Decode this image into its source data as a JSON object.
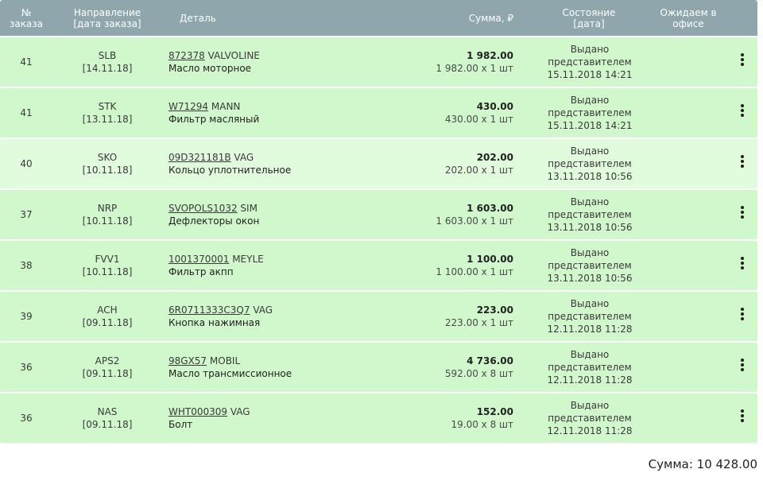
{
  "header": {
    "num": "№\nзаказа",
    "direction": "Направление\n[дата заказа]",
    "detail": "Деталь",
    "sum": "Сумма, ₽",
    "state": "Состояние\n[дата]",
    "office": "Ожидаем в\nофисе"
  },
  "rows": [
    {
      "num": "41",
      "dir": "SLB",
      "date": "[14.11.18]",
      "code": "872378",
      "brand": "VALVOLINE",
      "name": "Масло моторное",
      "total": "1 982.00",
      "detail": "1 982.00 х 1 шт",
      "status": "Выдано",
      "status2": "представителем",
      "status_date": "15.11.2018 14:21"
    },
    {
      "num": "41",
      "dir": "STK",
      "date": "[13.11.18]",
      "code": "W71294",
      "brand": "MANN",
      "name": "Фильтр масляный",
      "total": "430.00",
      "detail": "430.00 х 1 шт",
      "status": "Выдано",
      "status2": "представителем",
      "status_date": "15.11.2018 14:21"
    },
    {
      "num": "40",
      "dir": "SKO",
      "date": "[10.11.18]",
      "code": "09D321181B",
      "brand": "VAG",
      "name": "Кольцо уплотнительное",
      "total": "202.00",
      "detail": "202.00 х 1 шт",
      "status": "Выдано",
      "status2": "представителем",
      "status_date": "13.11.2018 10:56"
    },
    {
      "num": "37",
      "dir": "NRP",
      "date": "[10.11.18]",
      "code": "SVOPOLS1032",
      "brand": "SIM",
      "name": "Дефлекторы окон",
      "total": "1 603.00",
      "detail": "1 603.00 х 1 шт",
      "status": "Выдано",
      "status2": "представителем",
      "status_date": "13.11.2018 10:56"
    },
    {
      "num": "38",
      "dir": "FVV1",
      "date": "[10.11.18]",
      "code": "1001370001",
      "brand": "MEYLE",
      "name": "Фильтр акпп",
      "total": "1 100.00",
      "detail": "1 100.00 х 1 шт",
      "status": "Выдано",
      "status2": "представителем",
      "status_date": "13.11.2018 10:56"
    },
    {
      "num": "39",
      "dir": "ACH",
      "date": "[09.11.18]",
      "code": "6R0711333C3Q7",
      "brand": "VAG",
      "name": "Кнопка нажимная",
      "total": "223.00",
      "detail": "223.00 х 1 шт",
      "status": "Выдано",
      "status2": "представителем",
      "status_date": "12.11.2018 11:28"
    },
    {
      "num": "36",
      "dir": "APS2",
      "date": "[09.11.18]",
      "code": "98GX57",
      "brand": "MOBIL",
      "name": "Масло трансмиссионное",
      "total": "4 736.00",
      "detail": "592.00 х 8 шт",
      "status": "Выдано",
      "status2": "представителем",
      "status_date": "12.11.2018 11:28"
    },
    {
      "num": "36",
      "dir": "NAS",
      "date": "[09.11.18]",
      "code": "WHT000309",
      "brand": "VAG",
      "name": "Болт",
      "total": "152.00",
      "detail": "19.00 х 8 шт",
      "status": "Выдано",
      "status2": "представителем",
      "status_date": "12.11.2018 11:28"
    }
  ],
  "footer": {
    "sum": "Сумма: 10 428.00"
  },
  "icons": {
    "row_menu": "kebab-menu-icon"
  },
  "colors": {
    "header_bg": "#8fa6ac",
    "row_bg": "#d1f7cc",
    "row_highlight": "#e1fbdd"
  }
}
